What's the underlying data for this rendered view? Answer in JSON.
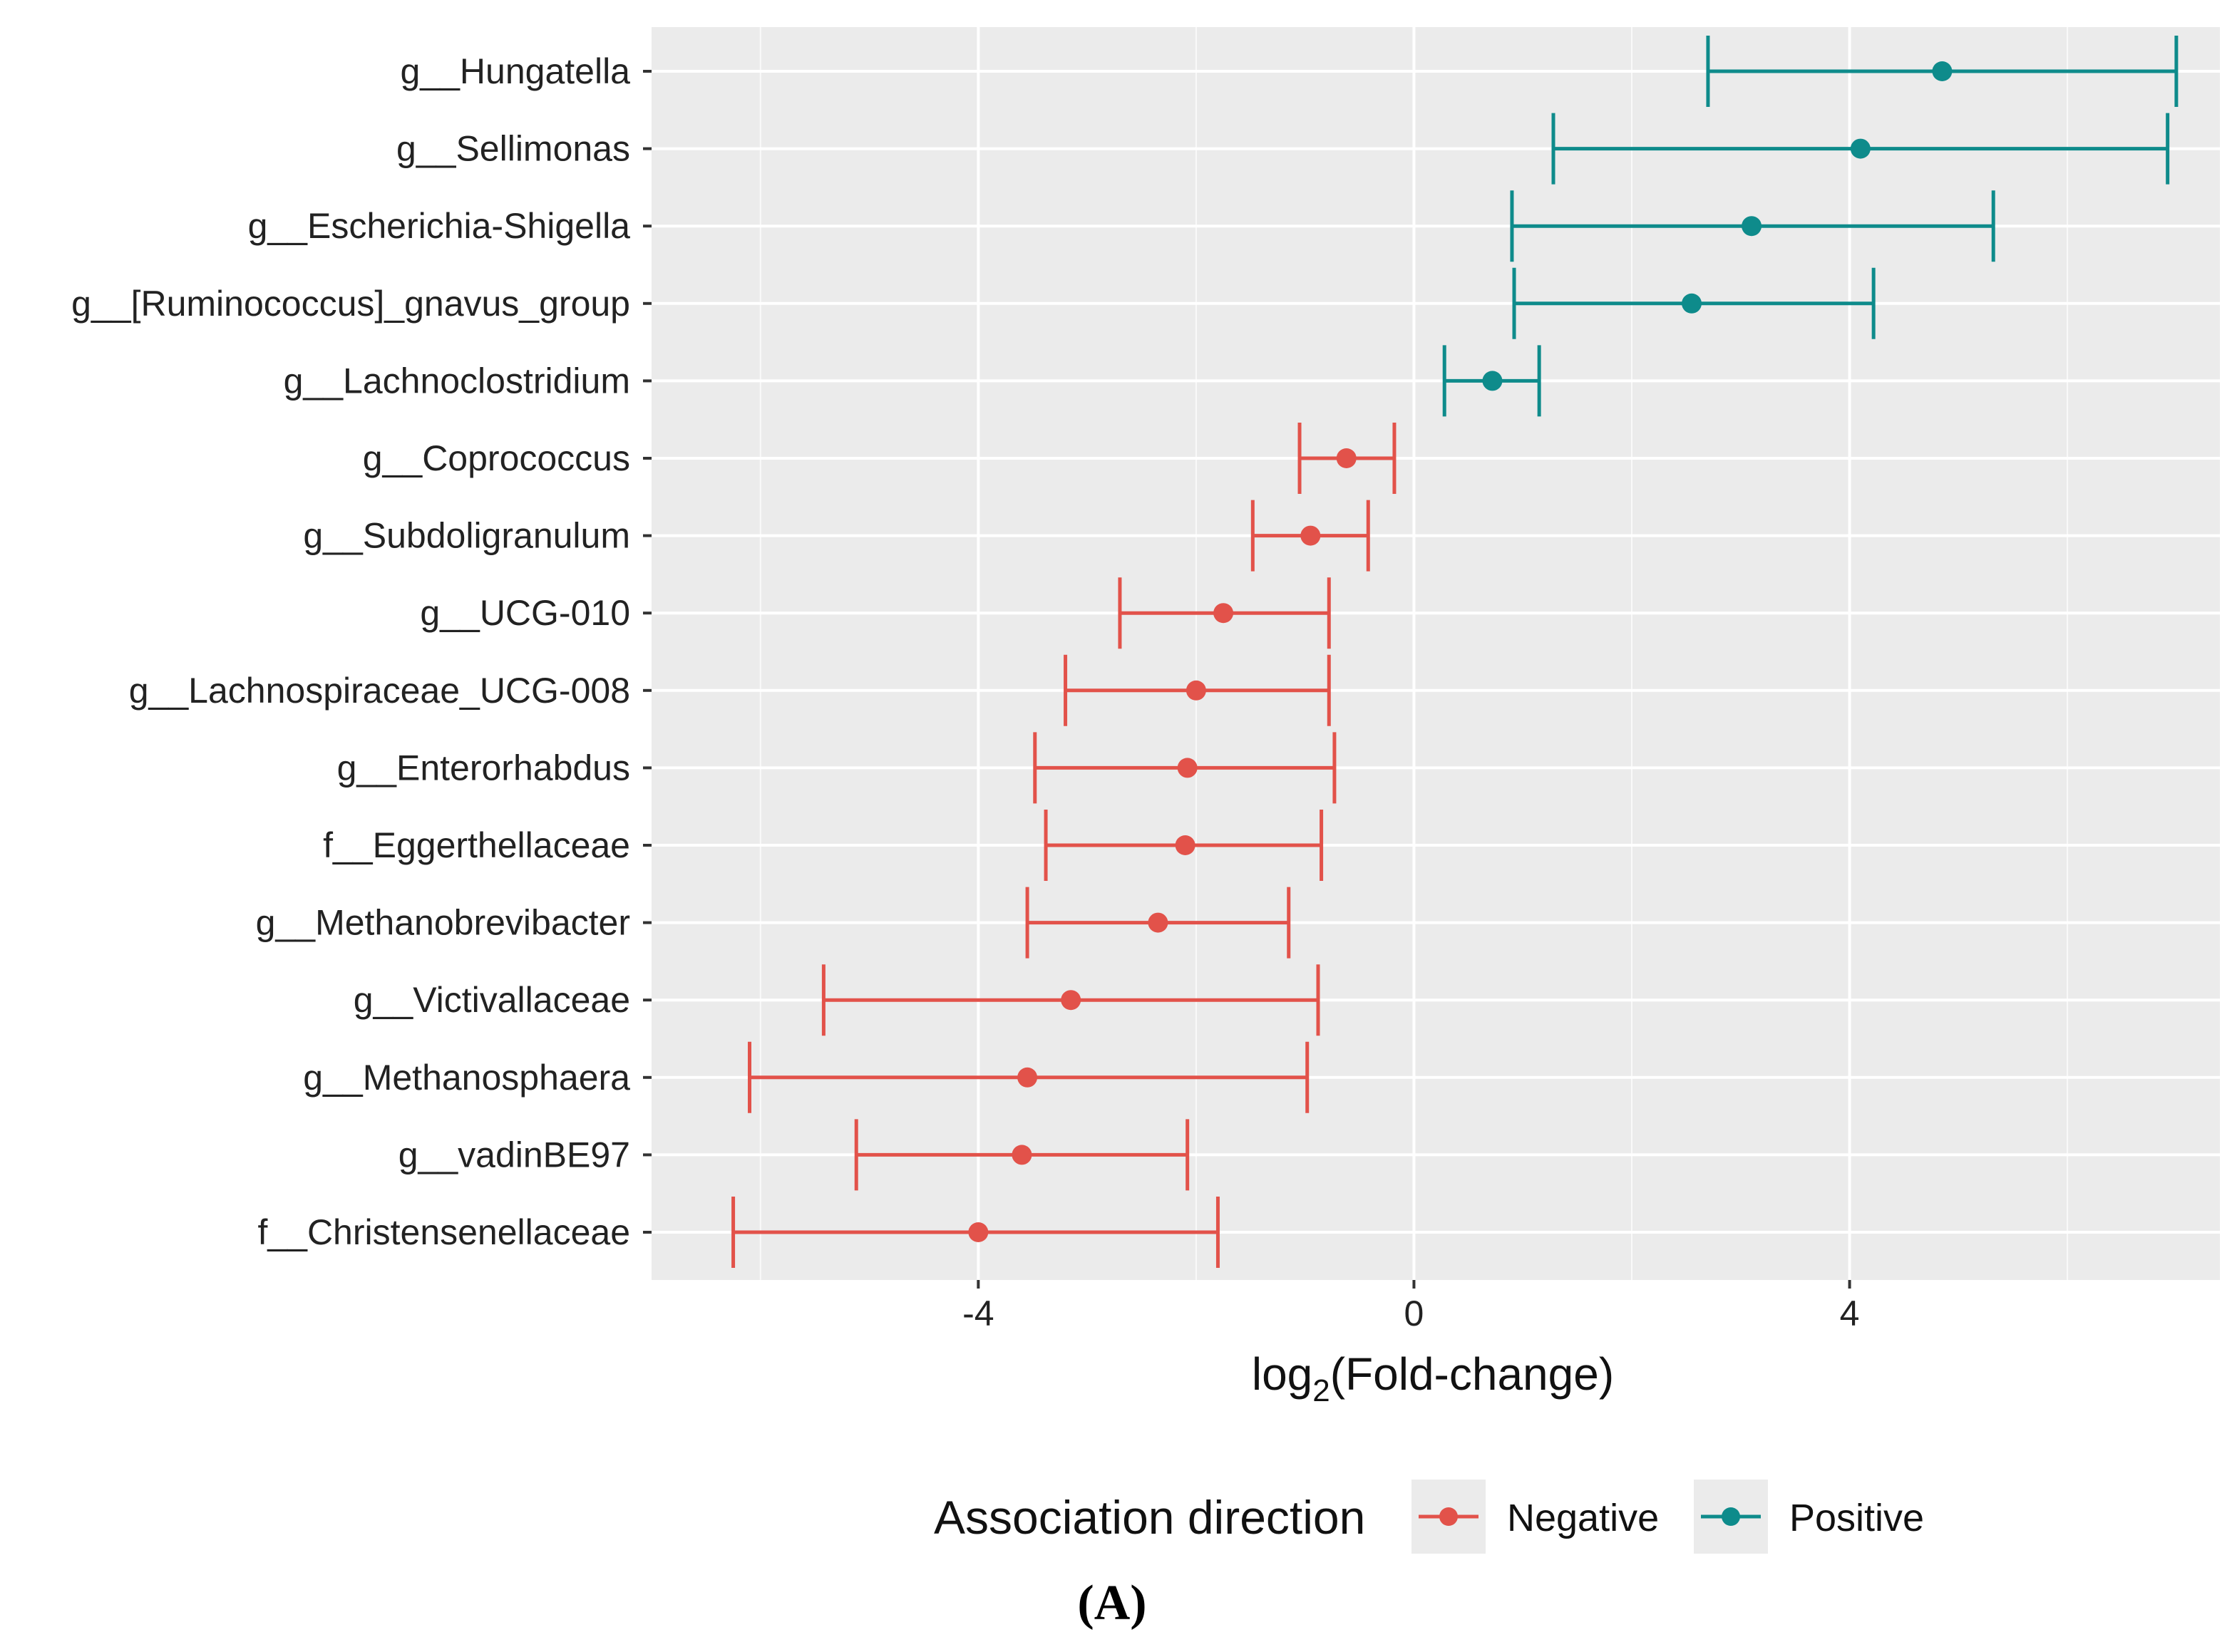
{
  "chart_data": {
    "type": "scatter",
    "subtype": "point-with-error-bars",
    "xlabel_main": "log",
    "xlabel_sub": "2",
    "xlabel_rest": "(Fold-change)",
    "xlim": [
      -7.0,
      7.4
    ],
    "x_ticks": [
      {
        "value": -4,
        "label": "-4"
      },
      {
        "value": 0,
        "label": "0"
      },
      {
        "value": 4,
        "label": "4"
      }
    ],
    "grid": true,
    "legend": {
      "title": "Association direction",
      "position": "bottom",
      "entries": [
        {
          "name": "Negative",
          "color": "#E2524A"
        },
        {
          "name": "Positive",
          "color": "#0E8B8B"
        }
      ]
    },
    "series": [
      {
        "label": "g__Hungatella",
        "value": 4.85,
        "lower": 2.7,
        "upper": 7.0,
        "direction": "Positive"
      },
      {
        "label": "g__Sellimonas",
        "value": 4.1,
        "lower": 1.28,
        "upper": 6.92,
        "direction": "Positive"
      },
      {
        "label": "g__Escherichia-Shigella",
        "value": 3.1,
        "lower": 0.9,
        "upper": 5.32,
        "direction": "Positive"
      },
      {
        "label": "g__[Ruminococcus]_gnavus_group",
        "value": 2.55,
        "lower": 0.92,
        "upper": 4.22,
        "direction": "Positive"
      },
      {
        "label": "g__Lachnoclostridium",
        "value": 0.72,
        "lower": 0.28,
        "upper": 1.15,
        "direction": "Positive"
      },
      {
        "label": "g__Coprococcus",
        "value": -0.62,
        "lower": -1.05,
        "upper": -0.18,
        "direction": "Negative"
      },
      {
        "label": "g__Subdoligranulum",
        "value": -0.95,
        "lower": -1.48,
        "upper": -0.42,
        "direction": "Negative"
      },
      {
        "label": "g__UCG-010",
        "value": -1.75,
        "lower": -2.7,
        "upper": -0.78,
        "direction": "Negative"
      },
      {
        "label": "g__Lachnospiraceae_UCG-008",
        "value": -2.0,
        "lower": -3.2,
        "upper": -0.78,
        "direction": "Negative"
      },
      {
        "label": "g__Enterorhabdus",
        "value": -2.08,
        "lower": -3.48,
        "upper": -0.73,
        "direction": "Negative"
      },
      {
        "label": "f__Eggerthellaceae",
        "value": -2.1,
        "lower": -3.38,
        "upper": -0.85,
        "direction": "Negative"
      },
      {
        "label": "g__Methanobrevibacter",
        "value": -2.35,
        "lower": -3.55,
        "upper": -1.15,
        "direction": "Negative"
      },
      {
        "label": "g__Victivallaceae",
        "value": -3.15,
        "lower": -5.42,
        "upper": -0.88,
        "direction": "Negative"
      },
      {
        "label": "g__Methanosphaera",
        "value": -3.55,
        "lower": -6.1,
        "upper": -0.98,
        "direction": "Negative"
      },
      {
        "label": "g__vadinBE97",
        "value": -3.6,
        "lower": -5.12,
        "upper": -2.08,
        "direction": "Negative"
      },
      {
        "label": "f__Christensenellaceae",
        "value": -4.0,
        "lower": -6.25,
        "upper": -1.8,
        "direction": "Negative"
      }
    ]
  },
  "figure": {
    "panel_label": "(A)"
  },
  "colors": {
    "panel_bg": "#EBEBEB",
    "grid_major": "#FFFFFF",
    "negative": "#E2524A",
    "positive": "#0E8B8B",
    "legend_key_bg": "#EBEBEB"
  }
}
